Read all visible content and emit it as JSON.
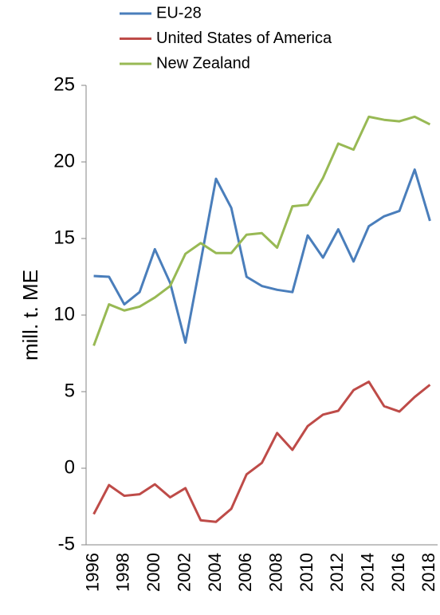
{
  "chart_data": {
    "type": "line",
    "y_label": "mill. t. ME",
    "categories": [
      "1996",
      null,
      "1998",
      null,
      "2000",
      null,
      "2002",
      null,
      "2004",
      null,
      "2006",
      null,
      "2008",
      null,
      "2010",
      null,
      "2012",
      null,
      "2014",
      null,
      "2016",
      null,
      "2018"
    ],
    "series": [
      {
        "name": "EU-28",
        "color": "#4a7ebb",
        "values": [
          12.55,
          12.5,
          10.7,
          11.5,
          14.3,
          12.1,
          8.2,
          13.5,
          18.9,
          17.0,
          12.5,
          11.9,
          11.65,
          11.5,
          15.2,
          13.75,
          15.6,
          13.5,
          15.8,
          16.45,
          16.8,
          19.5,
          16.15
        ]
      },
      {
        "name": "United States of America",
        "color": "#be4b48",
        "values": [
          -3.0,
          -1.1,
          -1.8,
          -1.7,
          -1.05,
          -1.9,
          -1.3,
          -3.4,
          -3.5,
          -2.65,
          -0.4,
          0.35,
          2.3,
          1.2,
          2.75,
          3.5,
          3.75,
          5.1,
          5.65,
          4.05,
          3.7,
          4.65,
          5.45
        ]
      },
      {
        "name": "New Zealand",
        "color": "#98b954",
        "values": [
          8.0,
          10.7,
          10.3,
          10.55,
          11.15,
          11.9,
          14.0,
          14.7,
          14.05,
          14.05,
          15.25,
          15.35,
          14.4,
          17.1,
          17.2,
          18.95,
          21.2,
          20.8,
          22.95,
          22.75,
          22.65,
          22.95,
          22.45
        ]
      }
    ],
    "ylim": [
      -5,
      25
    ],
    "yticks": [
      -5,
      0,
      5,
      10,
      15,
      20,
      25
    ],
    "grid": false,
    "legend": "top"
  }
}
